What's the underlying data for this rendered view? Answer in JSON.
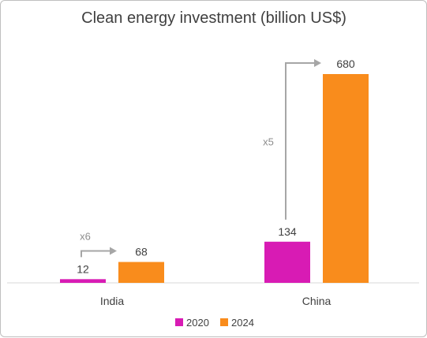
{
  "chart_data": {
    "type": "bar",
    "title": "Clean energy investment (billion US$)",
    "categories": [
      "India",
      "China"
    ],
    "series": [
      {
        "name": "2020",
        "values": [
          12,
          134
        ],
        "color": "#d81bb4"
      },
      {
        "name": "2024",
        "values": [
          68,
          680
        ],
        "color": "#f98c1c"
      }
    ],
    "annotations": [
      {
        "category": "India",
        "text": "x6"
      },
      {
        "category": "China",
        "text": "x5"
      }
    ],
    "ylim": [
      0,
      680
    ],
    "grid": false,
    "legend_position": "bottom",
    "xlabel": "",
    "ylabel": ""
  }
}
